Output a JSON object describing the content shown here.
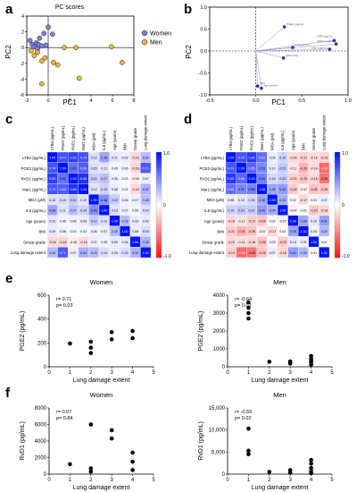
{
  "panels": {
    "a": {
      "letter": "a",
      "title": "PC scores",
      "xlabel": "PC1",
      "ylabel": "PC2",
      "xticks": [
        "-2",
        "0",
        "2",
        "4",
        "6",
        "8"
      ],
      "yticks": [
        "4",
        "2",
        "0",
        "-2",
        "-4",
        "-6"
      ],
      "xlim": [
        -2,
        8
      ],
      "ylim": [
        -6,
        4
      ],
      "legend": [
        {
          "name": "Women",
          "color": "#7f7fe0"
        },
        {
          "name": "Men",
          "color": "#f0b23c"
        }
      ],
      "women": [
        [
          -1.7,
          0.9
        ],
        [
          -1.5,
          0.4
        ],
        [
          -1.3,
          0.1
        ],
        [
          -1.1,
          0.6
        ],
        [
          -0.9,
          0.4
        ],
        [
          -0.8,
          1.2
        ],
        [
          -0.6,
          0.2
        ],
        [
          -0.4,
          1.8
        ],
        [
          -0.2,
          0.3
        ],
        [
          0.0,
          2.6
        ],
        [
          0.4,
          1.7
        ],
        [
          -1.0,
          -0.2
        ]
      ],
      "men": [
        [
          -1.6,
          -0.4
        ],
        [
          -1.3,
          -1.0
        ],
        [
          -1.0,
          -0.6
        ],
        [
          -0.6,
          -1.7
        ],
        [
          -0.3,
          -1.3
        ],
        [
          0.5,
          -1.9
        ],
        [
          0.9,
          -2.2
        ],
        [
          -0.6,
          -4.6
        ],
        [
          1.5,
          0.0
        ],
        [
          2.6,
          0.0
        ],
        [
          2.9,
          -3.9
        ],
        [
          5.9,
          0.1
        ],
        [
          6.9,
          -1.9
        ]
      ]
    },
    "b": {
      "letter": "b",
      "xlabel": "PC1",
      "ylabel": "PC2",
      "xticks": [
        "-0.5",
        "0.0",
        "0.5",
        "1.0"
      ],
      "yticks": [
        "1.0",
        "0.5",
        "0.0",
        "-0.5",
        "-1.0"
      ],
      "xlim": [
        -0.5,
        1.0
      ],
      "ylim": [
        -1.0,
        1.0
      ],
      "loadings": [
        {
          "name": "PGE2 (pg/mL)",
          "x": 0.31,
          "y": 0.55
        },
        {
          "name": "LTB4 (pg/mL)",
          "x": 0.85,
          "y": 0.24
        },
        {
          "name": "RVD1 (pg/mL)",
          "x": 0.87,
          "y": 0.16
        },
        {
          "name": "Mar1 (pg/mL)",
          "x": 0.8,
          "y": 0.04
        },
        {
          "name": "IL8 (pg/mL)",
          "x": 0.4,
          "y": 0.08
        },
        {
          "name": "MDA (μM)",
          "x": 0.3,
          "y": -0.16
        },
        {
          "name": "BMI",
          "x": 0.02,
          "y": -0.8
        },
        {
          "name": "Age (years)",
          "x": 0.06,
          "y": -0.85
        }
      ]
    },
    "c": {
      "letter": "c",
      "labels": [
        "LTB4 (pg/mL)",
        "PGE2 (pg/mL)",
        "RVD1 (pg/mL)",
        "Mar1 (pg/mL)",
        "MDA (μM)",
        "IL8 (pg/mL)",
        "Age (years)",
        "BMI",
        "Smear grade",
        "Lung damage extent"
      ],
      "matrix": [
        [
          1.0,
          0.74,
          0.82,
          0.73,
          0.13,
          0.39,
          0.11,
          0.09,
          -0.16,
          0.29
        ],
        [
          0.74,
          1.0,
          0.6,
          0.69,
          0.15,
          0.11,
          0.05,
          0.06,
          -0.18,
          0.71
        ],
        [
          0.82,
          0.6,
          1.0,
          0.88,
          0.22,
          0.27,
          0.06,
          0.03,
          -0.08,
          0.07
        ],
        [
          0.73,
          0.69,
          0.88,
          1.0,
          0.12,
          0.19,
          0.08,
          0.03,
          -0.16,
          0.33
        ],
        [
          0.13,
          0.15,
          0.22,
          0.12,
          1.0,
          0.48,
          0.22,
          0.06,
          0.07,
          0.28
        ],
        [
          0.39,
          0.11,
          0.27,
          0.19,
          0.48,
          1.0,
          0.13,
          0.07,
          0.05,
          0.14
        ],
        [
          0.11,
          0.05,
          0.06,
          0.08,
          0.22,
          0.13,
          1.0,
          0.28,
          0.09,
          0.09
        ],
        [
          0.09,
          0.06,
          0.03,
          0.03,
          0.06,
          0.07,
          0.28,
          1.0,
          0.08,
          0.15
        ],
        [
          -0.16,
          -0.18,
          -0.08,
          -0.16,
          0.07,
          0.05,
          0.09,
          0.08,
          1.0,
          0.32
        ],
        [
          0.29,
          0.71,
          0.07,
          0.33,
          0.28,
          0.14,
          0.09,
          0.15,
          0.32,
          1.0
        ]
      ],
      "scale_labels": [
        "1.0",
        "0",
        "-1.0"
      ]
    },
    "d": {
      "letter": "d",
      "labels": [
        "LTB4 (pg/mL)",
        "PGE2 (pg/mL)",
        "RVD1 (pg/mL)",
        "Mar1 (pg/mL)",
        "MDA (μM)",
        "IL8 (pg/mL)",
        "Age (years)",
        "BMI",
        "Smear grade",
        "Lung damage extent"
      ],
      "matrix": [
        [
          1.0,
          0.73,
          0.85,
          0.62,
          0.08,
          0.19,
          -0.16,
          -0.21,
          -0.16,
          -0.19
        ],
        [
          0.73,
          1.0,
          0.65,
          0.51,
          0.1,
          0.23,
          -0.11,
          -0.33,
          -0.14,
          -0.64
        ],
        [
          0.85,
          0.65,
          1.0,
          0.54,
          0.16,
          0.22,
          -0.21,
          -0.26,
          -0.18,
          -0.59
        ],
        [
          0.62,
          0.51,
          0.54,
          1.0,
          0.38,
          0.42,
          -0.24,
          -0.07,
          -0.26,
          -0.25
        ],
        [
          0.08,
          0.1,
          0.16,
          0.38,
          1.0,
          0.34,
          0.02,
          -0.17,
          0.03,
          0.07
        ],
        [
          0.19,
          0.23,
          0.22,
          0.42,
          0.34,
          1.0,
          -0.07,
          0.02,
          -0.23,
          -0.18
        ],
        [
          -0.16,
          -0.11,
          -0.21,
          -0.24,
          0.02,
          -0.07,
          1.0,
          0.38,
          0.1,
          0.41
        ],
        [
          -0.21,
          -0.33,
          -0.26,
          -0.07,
          -0.17,
          0.02,
          0.38,
          1.0,
          0.05,
          0.3
        ],
        [
          -0.16,
          -0.14,
          -0.18,
          -0.26,
          0.03,
          -0.23,
          0.1,
          0.05,
          1.0,
          0.01
        ],
        [
          -0.19,
          -0.64,
          -0.59,
          -0.25,
          0.07,
          -0.18,
          0.41,
          0.3,
          0.01,
          1.0
        ]
      ],
      "scale_labels": [
        "1.0",
        "0",
        "-1.0"
      ]
    }
  },
  "chart_data": [
    {
      "id": "e-women",
      "letter": "e",
      "type": "scatter",
      "title": "Women",
      "xlabel": "Lung damage extent",
      "ylabel": "PGE2 (pg/mL)",
      "xlim": [
        0,
        5
      ],
      "ylim": [
        0,
        600
      ],
      "xticks": [
        "0",
        "1",
        "2",
        "3",
        "4",
        "5"
      ],
      "yticks": [
        "0",
        "200",
        "400",
        "600"
      ],
      "annotation": [
        "r= 0.71",
        "p= 0.03"
      ],
      "points": [
        [
          1,
          195
        ],
        [
          2,
          115
        ],
        [
          2,
          160
        ],
        [
          2,
          210
        ],
        [
          3,
          230
        ],
        [
          3,
          290
        ],
        [
          4,
          240
        ],
        [
          4,
          300
        ]
      ]
    },
    {
      "id": "e-men",
      "letter": "",
      "type": "scatter",
      "title": "Men",
      "xlabel": "Lung damage extent",
      "ylabel": "PGE2 (pg/mL)",
      "xlim": [
        0,
        5
      ],
      "ylim": [
        0,
        4000
      ],
      "xticks": [
        "0",
        "1",
        "2",
        "3",
        "4",
        "5"
      ],
      "yticks": [
        "0",
        "1000",
        "2000",
        "3000",
        "4000"
      ],
      "annotation": [
        "r= -0.64",
        "p= 0.02"
      ],
      "points": [
        [
          1,
          2700
        ],
        [
          1,
          3000
        ],
        [
          1,
          3300
        ],
        [
          1,
          3600
        ],
        [
          2,
          280
        ],
        [
          3,
          180
        ],
        [
          3,
          300
        ],
        [
          4,
          120
        ],
        [
          4,
          250
        ],
        [
          4,
          350
        ],
        [
          4,
          450
        ],
        [
          4,
          600
        ]
      ]
    },
    {
      "id": "f-women",
      "letter": "f",
      "type": "scatter",
      "title": "Women",
      "xlabel": "Lung damage extent",
      "ylabel": "RvD1 (pg/mL)",
      "xlim": [
        0,
        5
      ],
      "ylim": [
        0,
        8000
      ],
      "xticks": [
        "0",
        "1",
        "2",
        "3",
        "4",
        "5"
      ],
      "yticks": [
        "0",
        "2000",
        "4000",
        "6000",
        "8000"
      ],
      "annotation": [
        "r= 0.07",
        "p= 0.84"
      ],
      "points": [
        [
          1,
          1200
        ],
        [
          2,
          300
        ],
        [
          2,
          700
        ],
        [
          2,
          6000
        ],
        [
          3,
          4300
        ],
        [
          3,
          5300
        ],
        [
          4,
          500
        ],
        [
          4,
          1500
        ],
        [
          4,
          2600
        ]
      ]
    },
    {
      "id": "f-men",
      "letter": "",
      "type": "scatter",
      "title": "Men",
      "xlabel": "Lung damage extent",
      "ylabel": "RvD1 (pg/mL)",
      "xlim": [
        0,
        5
      ],
      "ylim": [
        0,
        15000
      ],
      "xticks": [
        "0",
        "1",
        "2",
        "3",
        "4",
        "5"
      ],
      "yticks": [
        "0",
        "5,000",
        "10,000",
        "15,000"
      ],
      "annotation": [
        "r= -0.59",
        "p= 0.02"
      ],
      "points": [
        [
          1,
          4500
        ],
        [
          1,
          5300
        ],
        [
          1,
          10300
        ],
        [
          2,
          500
        ],
        [
          3,
          300
        ],
        [
          3,
          900
        ],
        [
          4,
          200
        ],
        [
          4,
          700
        ],
        [
          4,
          1400
        ],
        [
          4,
          2400
        ],
        [
          4,
          3200
        ]
      ]
    }
  ]
}
